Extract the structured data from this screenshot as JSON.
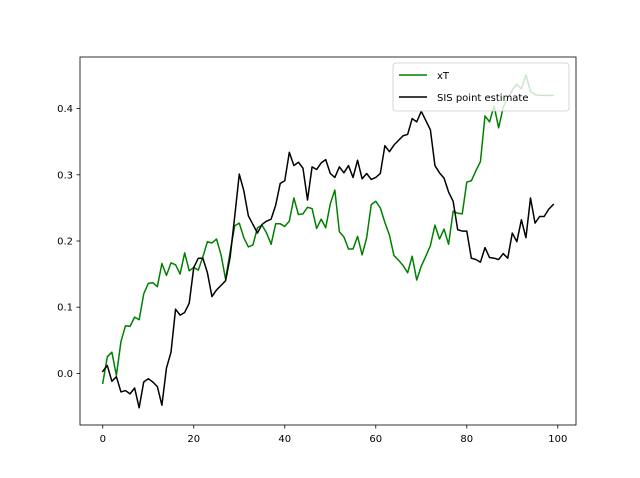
{
  "chart_data": {
    "type": "line",
    "title": "",
    "xlabel": "",
    "ylabel": "",
    "xlim": [
      -5,
      104
    ],
    "ylim": [
      -0.078,
      0.478
    ],
    "xticks": [
      0,
      20,
      40,
      60,
      80,
      100
    ],
    "yticks": [
      0.0,
      0.1,
      0.2,
      0.3,
      0.4
    ],
    "ytick_labels": [
      "0.0",
      "0.1",
      "0.2",
      "0.3",
      "0.4"
    ],
    "grid": false,
    "legend_position": "top-right",
    "series": [
      {
        "name": "xT",
        "color": "#008000",
        "x": [
          0,
          1,
          2,
          3,
          4,
          5,
          6,
          7,
          8,
          9,
          10,
          11,
          12,
          13,
          14,
          15,
          16,
          17,
          18,
          19,
          20,
          21,
          22,
          23,
          24,
          25,
          26,
          27,
          28,
          29,
          30,
          31,
          32,
          33,
          34,
          35,
          36,
          37,
          38,
          39,
          40,
          41,
          42,
          43,
          44,
          45,
          46,
          47,
          48,
          49,
          50,
          51,
          52,
          53,
          54,
          55,
          56,
          57,
          58,
          59,
          60,
          61,
          62,
          63,
          64,
          65,
          66,
          67,
          68,
          69,
          70,
          71,
          72,
          73,
          74,
          75,
          76,
          77,
          78,
          79,
          80,
          81,
          82,
          83,
          84,
          85,
          86,
          87,
          88,
          89,
          90,
          91,
          92,
          93,
          94,
          95,
          96,
          97,
          98,
          99
        ],
        "y": [
          -0.015,
          0.025,
          0.032,
          -0.003,
          0.048,
          0.072,
          0.071,
          0.085,
          0.081,
          0.12,
          0.136,
          0.137,
          0.131,
          0.166,
          0.148,
          0.167,
          0.164,
          0.15,
          0.182,
          0.155,
          0.16,
          0.156,
          0.176,
          0.199,
          0.197,
          0.203,
          0.179,
          0.142,
          0.184,
          0.223,
          0.227,
          0.205,
          0.191,
          0.194,
          0.22,
          0.224,
          0.212,
          0.195,
          0.226,
          0.226,
          0.222,
          0.23,
          0.265,
          0.24,
          0.241,
          0.251,
          0.249,
          0.219,
          0.233,
          0.22,
          0.256,
          0.277,
          0.214,
          0.206,
          0.188,
          0.188,
          0.207,
          0.179,
          0.205,
          0.255,
          0.26,
          0.25,
          0.228,
          0.209,
          0.178,
          0.171,
          0.163,
          0.152,
          0.177,
          0.141,
          0.162,
          0.177,
          0.193,
          0.224,
          0.203,
          0.218,
          0.195,
          0.245,
          0.242,
          0.241,
          0.289,
          0.291,
          0.306,
          0.32,
          0.389,
          0.38,
          0.404,
          0.371,
          0.402,
          0.416,
          0.428,
          0.437,
          0.43,
          0.451,
          0.426,
          0.421,
          0.42,
          0.42,
          0.42,
          0.42
        ]
      },
      {
        "name": "SIS point estimate",
        "color": "#000000",
        "x": [
          0,
          1,
          2,
          3,
          4,
          5,
          6,
          7,
          8,
          9,
          10,
          11,
          12,
          13,
          14,
          15,
          16,
          17,
          18,
          19,
          20,
          21,
          22,
          23,
          24,
          25,
          26,
          27,
          28,
          29,
          30,
          31,
          32,
          33,
          34,
          35,
          36,
          37,
          38,
          39,
          40,
          41,
          42,
          43,
          44,
          45,
          46,
          47,
          48,
          49,
          50,
          51,
          52,
          53,
          54,
          55,
          56,
          57,
          58,
          59,
          60,
          61,
          62,
          63,
          64,
          65,
          66,
          67,
          68,
          69,
          70,
          71,
          72,
          73,
          74,
          75,
          76,
          77,
          78,
          79,
          80,
          81,
          82,
          83,
          84,
          85,
          86,
          87,
          88,
          89,
          90,
          91,
          92,
          93,
          94,
          95,
          96,
          97,
          98,
          99
        ],
        "y": [
          0.003,
          0.012,
          -0.012,
          -0.005,
          -0.028,
          -0.026,
          -0.031,
          -0.022,
          -0.052,
          -0.013,
          -0.008,
          -0.013,
          -0.02,
          -0.048,
          0.008,
          0.032,
          0.097,
          0.088,
          0.092,
          0.106,
          0.16,
          0.174,
          0.174,
          0.152,
          0.116,
          0.126,
          0.133,
          0.14,
          0.176,
          0.237,
          0.301,
          0.276,
          0.238,
          0.225,
          0.212,
          0.225,
          0.23,
          0.233,
          0.254,
          0.287,
          0.291,
          0.334,
          0.314,
          0.319,
          0.31,
          0.262,
          0.312,
          0.308,
          0.318,
          0.323,
          0.302,
          0.296,
          0.312,
          0.303,
          0.314,
          0.296,
          0.322,
          0.294,
          0.302,
          0.293,
          0.296,
          0.302,
          0.344,
          0.335,
          0.345,
          0.352,
          0.359,
          0.361,
          0.385,
          0.38,
          0.396,
          0.382,
          0.368,
          0.314,
          0.303,
          0.295,
          0.274,
          0.26,
          0.217,
          0.215,
          0.215,
          0.174,
          0.172,
          0.168,
          0.19,
          0.175,
          0.174,
          0.172,
          0.181,
          0.174,
          0.212,
          0.199,
          0.232,
          0.205,
          0.265,
          0.227,
          0.237,
          0.237,
          0.248,
          0.255
        ]
      }
    ]
  }
}
